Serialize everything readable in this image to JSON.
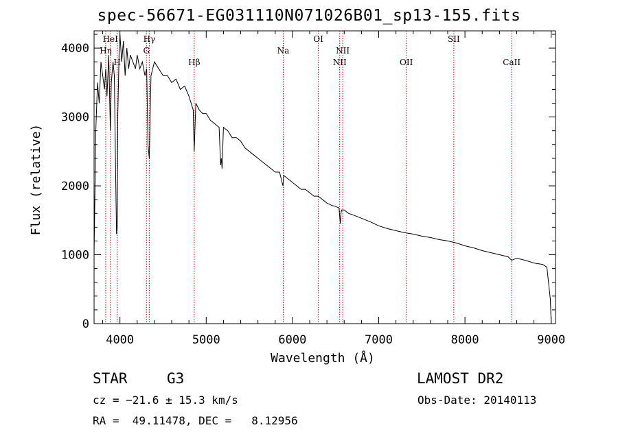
{
  "title": "spec-56671-EG031110N071026B01_sp13-155.fits",
  "info": {
    "object_class": "STAR",
    "subclass": "G3",
    "survey": "LAMOST DR2",
    "cz": "cz = −21.6 ± 15.3 km/s",
    "obs_date": "Obs-Date: 20140113",
    "coords": "RA =  49.11478, DEC =   8.12956"
  },
  "chart_data": {
    "type": "line",
    "title": "spec-56671-EG031110N071026B01_sp13-155.fits",
    "xlabel": "Wavelength (Å)",
    "ylabel": "Flux (relative)",
    "xlim": [
      3700,
      9050
    ],
    "ylim": [
      0,
      4250
    ],
    "xticks": [
      4000,
      5000,
      6000,
      7000,
      8000,
      9000
    ],
    "yticks": [
      0,
      1000,
      2000,
      3000,
      4000
    ],
    "grid": false,
    "line_color": "#000000",
    "marker_color": "#cc0000",
    "series": [
      {
        "x": [
          3700,
          3720,
          3740,
          3760,
          3780,
          3800,
          3820,
          3835,
          3850,
          3870,
          3889,
          3900,
          3920,
          3935,
          3950,
          3960,
          3968,
          3975,
          3990,
          4000,
          4020,
          4040,
          4060,
          4080,
          4101,
          4120,
          4150,
          4180,
          4200,
          4230,
          4260,
          4290,
          4310,
          4325,
          4340,
          4360,
          4380,
          4400,
          4450,
          4500,
          4550,
          4600,
          4650,
          4700,
          4750,
          4800,
          4850,
          4861,
          4880,
          4920,
          4960,
          5000,
          5050,
          5100,
          5150,
          5167,
          5175,
          5184,
          5200,
          5250,
          5300,
          5350,
          5400,
          5450,
          5500,
          5550,
          5600,
          5650,
          5700,
          5750,
          5800,
          5850,
          5890,
          5900,
          5950,
          6000,
          6050,
          6100,
          6150,
          6200,
          6250,
          6300,
          6350,
          6400,
          6450,
          6500,
          6540,
          6555,
          6563,
          6570,
          6600,
          6650,
          6700,
          6800,
          6900,
          7000,
          7100,
          7200,
          7300,
          7400,
          7500,
          7600,
          7700,
          7800,
          7900,
          8000,
          8100,
          8200,
          8300,
          8400,
          8500,
          8542,
          8600,
          8700,
          8800,
          8850,
          8900,
          8950,
          8990,
          9000
        ],
        "y": [
          1000,
          2800,
          3500,
          3200,
          3800,
          3600,
          3400,
          3700,
          3300,
          3900,
          2800,
          3500,
          3800,
          3600,
          2200,
          1300,
          1400,
          3000,
          3900,
          4200,
          3800,
          4100,
          3600,
          4000,
          3700,
          3900,
          3800,
          3700,
          3900,
          3700,
          3800,
          3600,
          3700,
          2600,
          2400,
          3600,
          3700,
          3800,
          3700,
          3600,
          3600,
          3500,
          3550,
          3400,
          3450,
          3300,
          3100,
          2500,
          3200,
          3100,
          3050,
          3050,
          2950,
          2900,
          2850,
          2300,
          2400,
          2250,
          2850,
          2800,
          2700,
          2700,
          2650,
          2550,
          2500,
          2450,
          2400,
          2350,
          2300,
          2250,
          2200,
          2200,
          2000,
          2150,
          2100,
          2050,
          2000,
          1950,
          1950,
          1900,
          1850,
          1850,
          1800,
          1750,
          1720,
          1700,
          1680,
          1450,
          1600,
          1650,
          1650,
          1600,
          1580,
          1530,
          1480,
          1420,
          1380,
          1350,
          1320,
          1300,
          1270,
          1250,
          1220,
          1200,
          1170,
          1130,
          1100,
          1060,
          1030,
          1000,
          970,
          920,
          950,
          920,
          880,
          870,
          860,
          820,
          350,
          0
        ]
      }
    ],
    "lines": [
      {
        "label": "HeI",
        "x": 3889
      },
      {
        "label": "Hη",
        "x": 3835
      },
      {
        "label": "H",
        "x": 3968
      },
      {
        "label": "Hγ",
        "x": 4340
      },
      {
        "label": "G",
        "x": 4307
      },
      {
        "label": "Hβ",
        "x": 4861
      },
      {
        "label": "Na",
        "x": 5893
      },
      {
        "label": "OI",
        "x": 6300
      },
      {
        "label": "NII",
        "x": 6583
      },
      {
        "label": "NII",
        "x": 6548
      },
      {
        "label": "OII",
        "x": 7320
      },
      {
        "label": "SII",
        "x": 7871
      },
      {
        "label": "CaII",
        "x": 8542
      }
    ]
  }
}
